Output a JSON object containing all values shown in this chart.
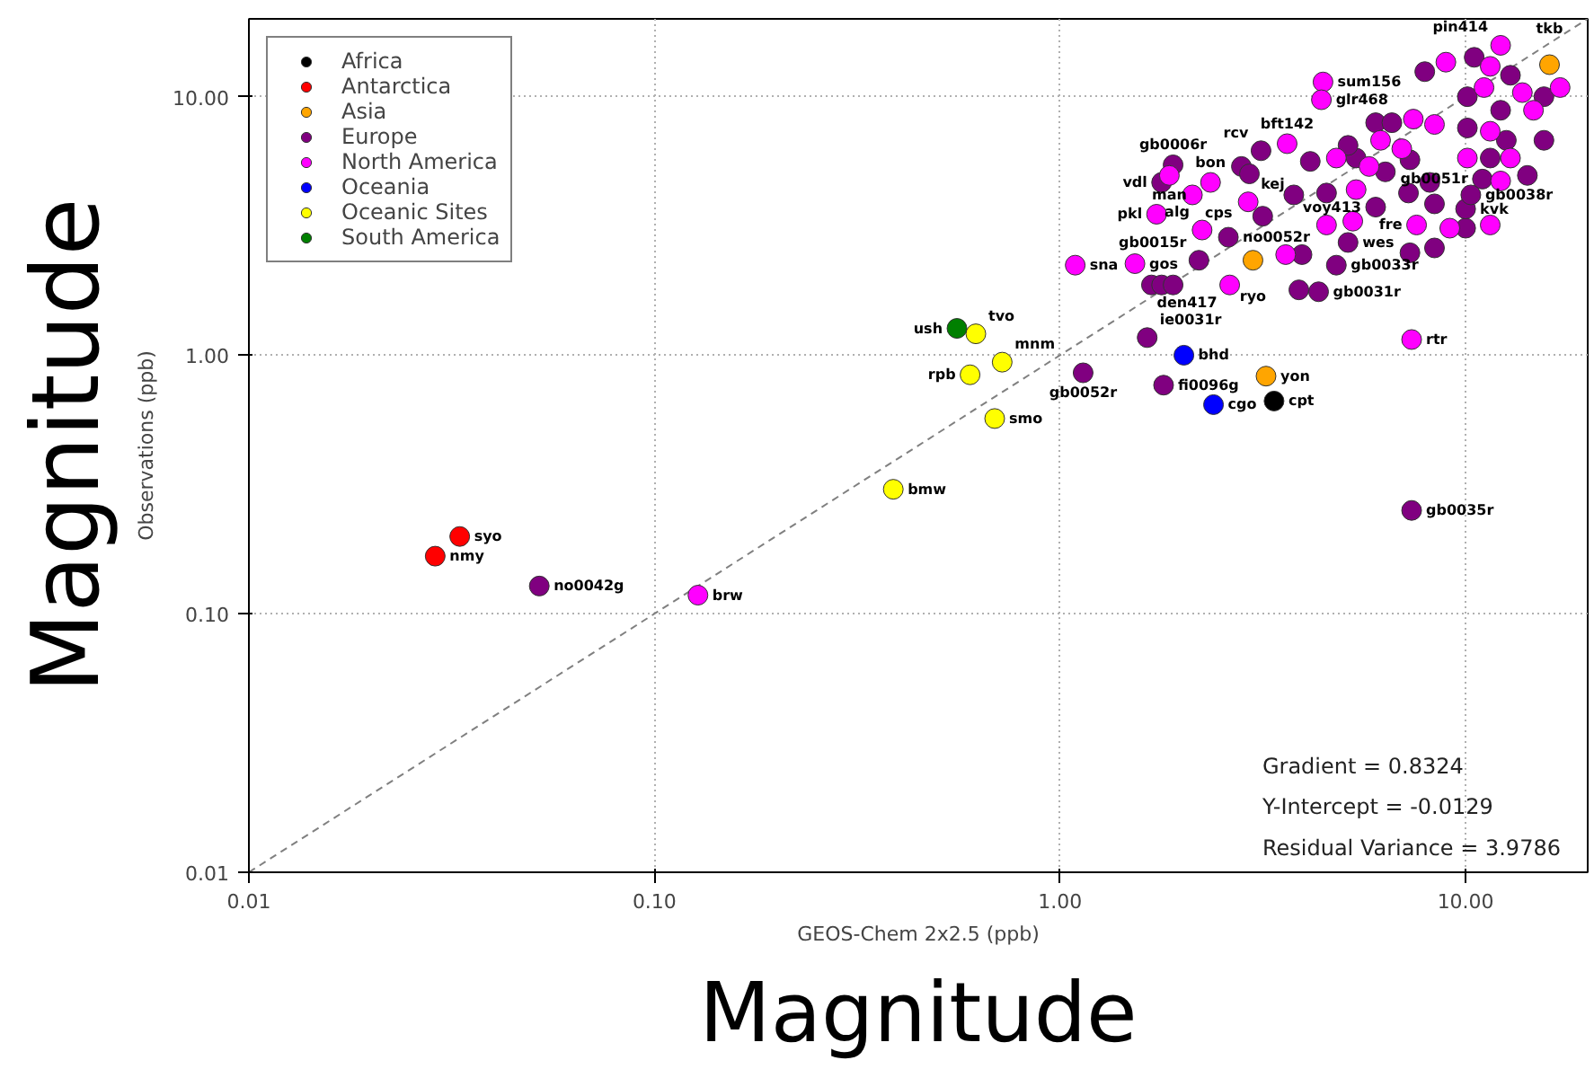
{
  "chart_data": {
    "type": "scatter",
    "xlabel": "GEOS-Chem 2x2.5 (ppb)",
    "ylabel": "Observations (ppb)",
    "log": "xy",
    "grid": true,
    "legend": "top left",
    "marker": "circle",
    "xlim": [
      0.01,
      20
    ],
    "ylim": [
      0.01,
      20
    ],
    "xticks": [
      0.01,
      {
        "value": 0.1,
        "label": "0.10"
      },
      {
        "value": 1,
        "label": "1.00"
      },
      {
        "value": 10,
        "label": "10.00"
      }
    ],
    "yticks": [
      0.01,
      {
        "value": 0.1,
        "label": "0.10"
      },
      {
        "value": 1,
        "label": "1.00"
      },
      {
        "value": 10,
        "label": "10.00"
      }
    ],
    "series": [
      {
        "name": "Africa",
        "color": "#000000",
        "x": [
          3.37
        ],
        "values": [
          0.665
        ]
      },
      {
        "name": "Antarctica",
        "color": "#ff0000",
        "x": [
          0.0331,
          0.0288
        ],
        "values": [
          0.199,
          0.167
        ]
      },
      {
        "name": "Asia",
        "color": "#ffa500",
        "x": [
          3.22,
          2.99,
          16.1
        ],
        "values": [
          0.83,
          2.33,
          13.3
        ]
      },
      {
        "name": "Europe",
        "color": "#800080",
        "x": [
          0.052,
          1.64,
          1.14,
          1.8,
          7.36,
          2.2,
          1.68,
          1.78,
          1.9,
          3.88,
          4.34,
          4.8,
          5.13,
          3.95,
          7.29,
          8.38,
          2.6,
          1.78,
          1.9,
          2.8,
          2.93,
          3.13,
          3.16,
          3.77,
          6.0,
          10.0,
          8.38,
          10.0,
          10.3,
          11.0,
          8.16,
          7.23,
          5.37,
          6.0,
          6.58,
          10.1,
          12.6,
          11.5,
          10.1,
          15.6,
          12.2,
          10.5,
          7.93,
          12.9,
          15.6,
          14.2,
          5.13,
          6.34,
          7.29,
          4.14,
          4.54
        ],
        "values": [
          0.128,
          1.17,
          0.855,
          0.766,
          0.251,
          2.33,
          1.87,
          1.87,
          1.87,
          1.79,
          1.76,
          2.23,
          2.73,
          2.45,
          2.49,
          2.6,
          2.86,
          4.66,
          5.45,
          5.37,
          5.03,
          6.18,
          3.45,
          4.17,
          3.74,
          3.1,
          3.85,
          3.68,
          4.17,
          4.8,
          4.66,
          4.24,
          5.79,
          7.93,
          7.93,
          7.57,
          6.78,
          5.79,
          10.0,
          10.0,
          8.86,
          14.2,
          12.5,
          12.1,
          6.78,
          4.96,
          6.48,
          5.12,
          5.7,
          5.62,
          4.24
        ]
      },
      {
        "name": "North America",
        "color": "#ff00ff",
        "x": [
          0.128,
          7.36,
          1.09,
          1.53,
          2.62,
          3.6,
          2.12,
          1.73,
          2.24,
          2.35,
          1.86,
          3.63,
          2.91,
          4.54,
          5.27,
          7.57,
          9.14,
          11.5,
          5.78,
          4.8,
          6.17,
          7.43,
          8.38,
          11.5,
          12.9,
          10.1,
          11.1,
          13.8,
          14.7,
          8.94,
          12.2,
          4.45,
          4.41,
          11.5,
          17.1,
          12.2,
          6.96,
          5.37
        ],
        "values": [
          0.118,
          1.15,
          2.23,
          2.26,
          1.87,
          2.45,
          4.17,
          3.51,
          3.05,
          4.66,
          4.96,
          6.58,
          3.92,
          3.19,
          3.3,
          3.19,
          3.1,
          3.19,
          5.37,
          5.79,
          6.78,
          8.19,
          7.81,
          7.35,
          5.79,
          5.79,
          10.85,
          10.37,
          8.86,
          13.6,
          15.8,
          11.4,
          9.73,
          13.1,
          10.85,
          4.72,
          6.29,
          4.37
        ]
      },
      {
        "name": "Oceania",
        "color": "#0000ff",
        "x": [
          2.02,
          2.39
        ],
        "values": [
          1.0,
          0.644
        ]
      },
      {
        "name": "Oceanic Sites",
        "color": "#ffff00",
        "x": [
          0.388,
          0.69,
          0.6,
          0.72,
          0.62
        ],
        "values": [
          0.303,
          0.569,
          0.84,
          0.94,
          1.21
        ]
      },
      {
        "name": "South America",
        "color": "#008000",
        "x": [
          0.557
        ],
        "values": [
          1.27
        ]
      },
      {
        "type": "line",
        "color": "#808080",
        "line_style": "dashed",
        "marker": "none",
        "x": [
          0.01,
          20
        ],
        "values": [
          0.01,
          20
        ]
      }
    ],
    "annotations": [
      "Gradient = 0.8324",
      "Y-Intercept = -0.0129",
      "Residual Variance = 3.9786",
      "Magnitude",
      "Magnitude",
      {
        "text": "cpt",
        "x": 3.37,
        "y": 0.665
      },
      {
        "text": "syo",
        "x": 0.0331,
        "y": 0.199
      },
      {
        "text": "nmy",
        "x": 0.0288,
        "y": 0.167
      },
      {
        "text": "yon",
        "x": 3.22,
        "y": 0.83
      },
      {
        "text": "ryo",
        "x": 2.99,
        "y": 2.33
      },
      {
        "text": "tkb",
        "x": 16.1,
        "y": 13.3
      },
      {
        "text": "no0042g",
        "x": 0.052,
        "y": 0.128
      },
      {
        "text": "ie0031r",
        "x": 1.64,
        "y": 1.17
      },
      {
        "text": "gb0052r",
        "x": 1.14,
        "y": 0.855
      },
      {
        "text": "fi0096g",
        "x": 1.8,
        "y": 0.766
      },
      {
        "text": "gb0035r",
        "x": 7.36,
        "y": 0.251
      },
      {
        "text": "gb0015r",
        "x": 2.2,
        "y": 2.33
      },
      {
        "text": "gb0031r",
        "x": 4.34,
        "y": 1.76
      },
      {
        "text": "gb0033r",
        "x": 4.8,
        "y": 2.23
      },
      {
        "text": "wes",
        "x": 5.13,
        "y": 2.73
      },
      {
        "text": "no0052r",
        "x": 2.6,
        "y": 2.86
      },
      {
        "text": "vdl",
        "x": 1.78,
        "y": 4.66
      },
      {
        "text": "gb0006r",
        "x": 1.9,
        "y": 5.45
      },
      {
        "text": "rcv",
        "x": 3.13,
        "y": 6.18
      },
      {
        "text": "voy413",
        "x": 6.0,
        "y": 3.74
      },
      {
        "text": "kvk",
        "x": 10.0,
        "y": 3.68
      },
      {
        "text": "gb0038r",
        "x": 10.3,
        "y": 4.17
      },
      {
        "text": "gb0051r",
        "x": 11.0,
        "y": 4.8
      },
      {
        "text": "brw",
        "x": 0.128,
        "y": 0.118
      },
      {
        "text": "rtr",
        "x": 7.36,
        "y": 1.15
      },
      {
        "text": "sna",
        "x": 1.09,
        "y": 2.23
      },
      {
        "text": "gos",
        "x": 1.53,
        "y": 2.26
      },
      {
        "text": "den417",
        "x": 2.62,
        "y": 1.87
      },
      {
        "text": "cps",
        "x": 2.12,
        "y": 4.17
      },
      {
        "text": "pkl",
        "x": 1.73,
        "y": 3.51
      },
      {
        "text": "alg",
        "x": 2.24,
        "y": 3.05
      },
      {
        "text": "bon",
        "x": 2.35,
        "y": 4.66
      },
      {
        "text": "man",
        "x": 1.86,
        "y": 4.96
      },
      {
        "text": "bft142",
        "x": 3.63,
        "y": 6.58
      },
      {
        "text": "kej",
        "x": 2.91,
        "y": 3.92
      },
      {
        "text": "fre",
        "x": 7.57,
        "y": 3.19
      },
      {
        "text": "pin414",
        "x": 12.2,
        "y": 15.8
      },
      {
        "text": "sum156",
        "x": 4.45,
        "y": 11.4
      },
      {
        "text": "glr468",
        "x": 4.41,
        "y": 9.73
      },
      {
        "text": "bhd",
        "x": 2.02,
        "y": 1.0
      },
      {
        "text": "cgo",
        "x": 2.39,
        "y": 0.644
      },
      {
        "text": "bmw",
        "x": 0.388,
        "y": 0.303
      },
      {
        "text": "smo",
        "x": 0.69,
        "y": 0.569
      },
      {
        "text": "rpb",
        "x": 0.6,
        "y": 0.84
      },
      {
        "text": "mnm",
        "x": 0.72,
        "y": 0.94
      },
      {
        "text": "tvo",
        "x": 0.62,
        "y": 1.21
      },
      {
        "text": "ush",
        "x": 0.557,
        "y": 1.27
      }
    ]
  }
}
